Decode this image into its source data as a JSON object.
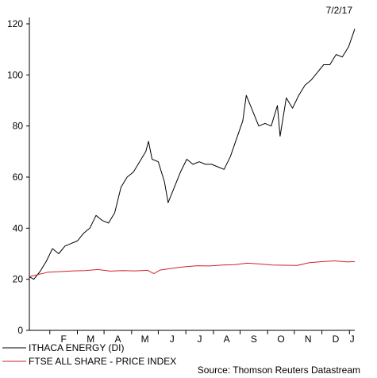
{
  "date_stamp": "7/2/17",
  "source": "Source: Thomson Reuters Datastream",
  "chart_data": {
    "type": "line",
    "title": "",
    "xlabel": "",
    "ylabel": "",
    "ylim": [
      0,
      120
    ],
    "yticks": [
      0,
      20,
      40,
      60,
      80,
      100,
      120
    ],
    "x_range": [
      "2016-02-07",
      "2017-02-07"
    ],
    "x_tick_labels": [
      "F",
      "M",
      "A",
      "M",
      "J",
      "J",
      "A",
      "S",
      "O",
      "N",
      "D",
      "J"
    ],
    "grid": false,
    "legend_position": "bottom-left",
    "series": [
      {
        "name": "ITHACA ENERGY (DI)",
        "color": "#000000",
        "points": [
          [
            "2016-02-07",
            21
          ],
          [
            "2016-02-12",
            20
          ],
          [
            "2016-02-19",
            23
          ],
          [
            "2016-02-26",
            27
          ],
          [
            "2016-03-04",
            32
          ],
          [
            "2016-03-11",
            30
          ],
          [
            "2016-03-18",
            33
          ],
          [
            "2016-03-25",
            34
          ],
          [
            "2016-04-01",
            35
          ],
          [
            "2016-04-08",
            38
          ],
          [
            "2016-04-15",
            40
          ],
          [
            "2016-04-22",
            45
          ],
          [
            "2016-04-29",
            43
          ],
          [
            "2016-05-06",
            42
          ],
          [
            "2016-05-13",
            46
          ],
          [
            "2016-05-20",
            56
          ],
          [
            "2016-05-27",
            60
          ],
          [
            "2016-06-03",
            62
          ],
          [
            "2016-06-10",
            66
          ],
          [
            "2016-06-17",
            70
          ],
          [
            "2016-06-20",
            74
          ],
          [
            "2016-06-24",
            67
          ],
          [
            "2016-07-01",
            66
          ],
          [
            "2016-07-08",
            58
          ],
          [
            "2016-07-12",
            50
          ],
          [
            "2016-07-19",
            56
          ],
          [
            "2016-07-26",
            62
          ],
          [
            "2016-08-02",
            67
          ],
          [
            "2016-08-09",
            65
          ],
          [
            "2016-08-16",
            66
          ],
          [
            "2016-08-23",
            65
          ],
          [
            "2016-08-30",
            65
          ],
          [
            "2016-09-06",
            64
          ],
          [
            "2016-09-13",
            63
          ],
          [
            "2016-09-20",
            68
          ],
          [
            "2016-09-27",
            75
          ],
          [
            "2016-10-04",
            82
          ],
          [
            "2016-10-08",
            92
          ],
          [
            "2016-10-15",
            86
          ],
          [
            "2016-10-22",
            80
          ],
          [
            "2016-10-29",
            81
          ],
          [
            "2016-11-05",
            80
          ],
          [
            "2016-11-12",
            88
          ],
          [
            "2016-11-15",
            76
          ],
          [
            "2016-11-22",
            91
          ],
          [
            "2016-11-29",
            87
          ],
          [
            "2016-12-06",
            92
          ],
          [
            "2016-12-13",
            96
          ],
          [
            "2016-12-20",
            98
          ],
          [
            "2016-12-27",
            101
          ],
          [
            "2017-01-03",
            104
          ],
          [
            "2017-01-10",
            104
          ],
          [
            "2017-01-17",
            108
          ],
          [
            "2017-01-24",
            107
          ],
          [
            "2017-01-31",
            111
          ],
          [
            "2017-02-07",
            118
          ]
        ]
      },
      {
        "name": "FTSE ALL SHARE - PRICE INDEX",
        "color": "#d0232a",
        "points": [
          [
            "2016-02-07",
            21
          ],
          [
            "2016-02-14",
            21.6
          ],
          [
            "2016-02-28",
            22.8
          ],
          [
            "2016-03-13",
            23
          ],
          [
            "2016-03-27",
            23.3
          ],
          [
            "2016-04-10",
            23.4
          ],
          [
            "2016-04-24",
            23.8
          ],
          [
            "2016-05-08",
            23.2
          ],
          [
            "2016-05-22",
            23.4
          ],
          [
            "2016-06-05",
            23.3
          ],
          [
            "2016-06-19",
            23.5
          ],
          [
            "2016-06-26",
            22.2
          ],
          [
            "2016-07-03",
            23.6
          ],
          [
            "2016-07-17",
            24.3
          ],
          [
            "2016-07-31",
            24.9
          ],
          [
            "2016-08-14",
            25.3
          ],
          [
            "2016-08-28",
            25.2
          ],
          [
            "2016-09-11",
            25.6
          ],
          [
            "2016-09-25",
            25.7
          ],
          [
            "2016-10-09",
            26.3
          ],
          [
            "2016-10-23",
            26
          ],
          [
            "2016-11-06",
            25.6
          ],
          [
            "2016-11-20",
            25.5
          ],
          [
            "2016-12-04",
            25.4
          ],
          [
            "2016-12-18",
            26.5
          ],
          [
            "2017-01-01",
            26.9
          ],
          [
            "2017-01-15",
            27.2
          ],
          [
            "2017-01-29",
            26.8
          ],
          [
            "2017-02-07",
            26.9
          ]
        ]
      }
    ]
  }
}
